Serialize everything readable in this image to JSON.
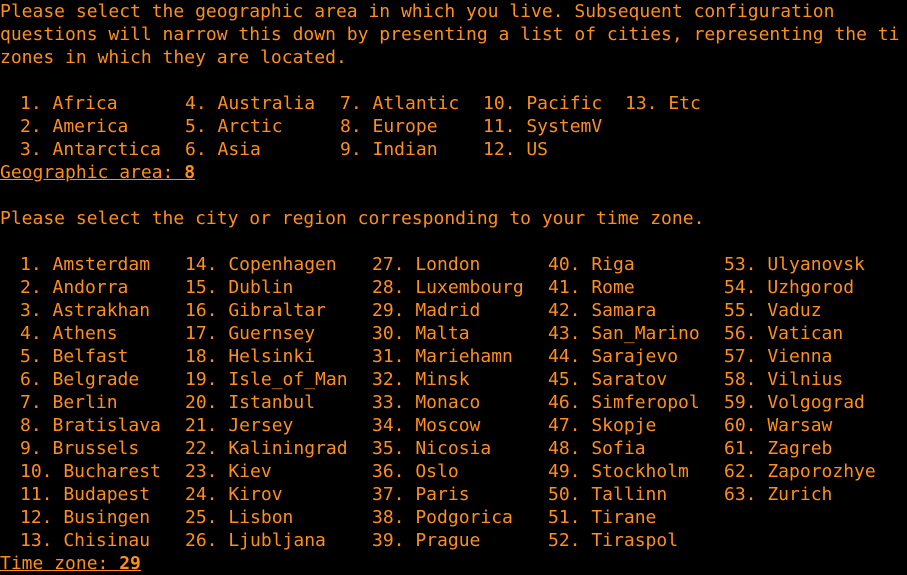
{
  "intro": [
    "Please select the geographic area in which you live. Subsequent configuration",
    "questions will narrow this down by presenting a list of cities, representing the ti",
    "zones in which they are located."
  ],
  "areas": [
    [
      "1. Africa",
      "2. America",
      "3. Antarctica"
    ],
    [
      "4. Australia",
      "5. Arctic",
      "6. Asia"
    ],
    [
      "7. Atlantic",
      "8. Europe",
      "9. Indian"
    ],
    [
      "10. Pacific",
      "11. SystemV",
      "12. US"
    ],
    [
      "13. Etc"
    ]
  ],
  "area_prompt": {
    "label": "Geographic area:",
    "answer": "8"
  },
  "city_question": "Please select the city or region corresponding to your time zone.",
  "cities": [
    [
      "1. Amsterdam",
      "2. Andorra",
      "3. Astrakhan",
      "4. Athens",
      "5. Belfast",
      "6. Belgrade",
      "7. Berlin",
      "8. Bratislava",
      "9. Brussels",
      "10. Bucharest",
      "11. Budapest",
      "12. Busingen",
      "13. Chisinau"
    ],
    [
      "14. Copenhagen",
      "15. Dublin",
      "16. Gibraltar",
      "17. Guernsey",
      "18. Helsinki",
      "19. Isle_of_Man",
      "20. Istanbul",
      "21. Jersey",
      "22. Kaliningrad",
      "23. Kiev",
      "24. Kirov",
      "25. Lisbon",
      "26. Ljubljana"
    ],
    [
      "27. London",
      "28. Luxembourg",
      "29. Madrid",
      "30. Malta",
      "31. Mariehamn",
      "32. Minsk",
      "33. Monaco",
      "34. Moscow",
      "35. Nicosia",
      "36. Oslo",
      "37. Paris",
      "38. Podgorica",
      "39. Prague"
    ],
    [
      "40. Riga",
      "41. Rome",
      "42. Samara",
      "43. San_Marino",
      "44. Sarajevo",
      "45. Saratov",
      "46. Simferopol",
      "47. Skopje",
      "48. Sofia",
      "49. Stockholm",
      "50. Tallinn",
      "51. Tirane",
      "52. Tiraspol"
    ],
    [
      "53. Ulyanovsk",
      "54. Uzhgorod",
      "55. Vaduz",
      "56. Vatican",
      "57. Vienna",
      "58. Vilnius",
      "59. Volgograd",
      "60. Warsaw",
      "61. Zagreb",
      "62. Zaporozhye",
      "63. Zurich"
    ]
  ],
  "tz_prompt": {
    "label": "Time zone:",
    "answer": "29"
  }
}
